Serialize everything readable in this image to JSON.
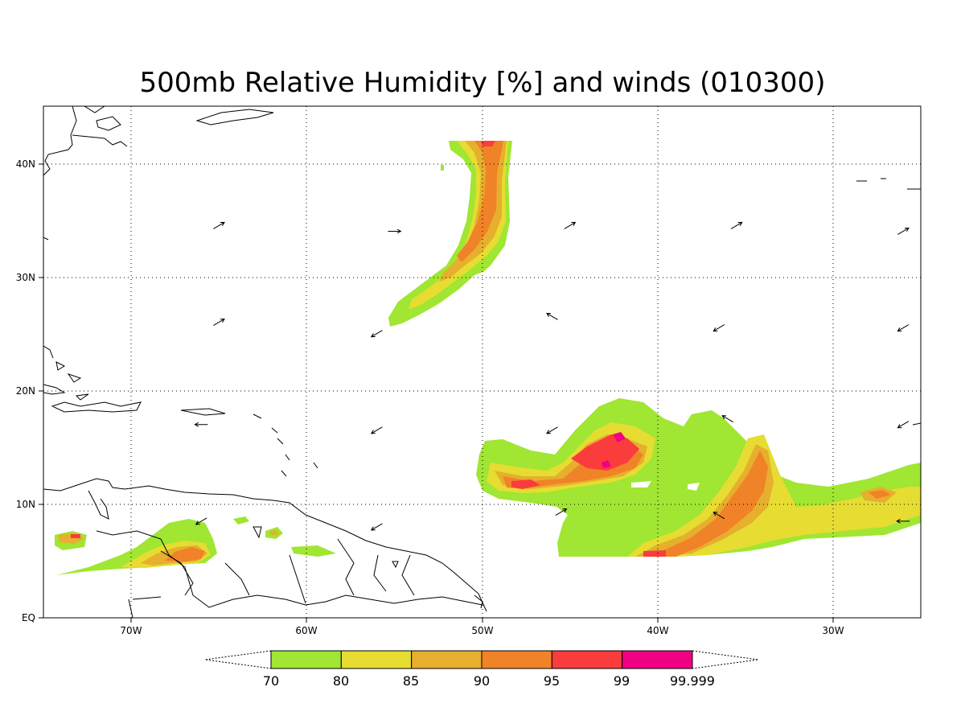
{
  "title": "500mb Relative Humidity [%] and winds (010300)",
  "axes": {
    "lon_ticks": [
      "70W",
      "60W",
      "50W",
      "40W",
      "30W"
    ],
    "lat_ticks": [
      "EQ",
      "10N",
      "20N",
      "30N",
      "40N"
    ]
  },
  "colorbar": {
    "levels": [
      "70",
      "80",
      "85",
      "90",
      "95",
      "99",
      "99.999"
    ],
    "colors": [
      "#a0e632",
      "#e6dc32",
      "#e6af2d",
      "#f08228",
      "#fa3c3c",
      "#f00082"
    ]
  },
  "chart_data": {
    "type": "heatmap",
    "title": "500mb Relative Humidity [%] and winds (010300)",
    "xlim": [
      -75,
      -25
    ],
    "ylim": [
      0,
      45
    ],
    "x_ticks": [
      "70W",
      "60W",
      "50W",
      "40W",
      "30W"
    ],
    "y_ticks": [
      "EQ",
      "10N",
      "20N",
      "30N",
      "40N"
    ],
    "grid": true,
    "legend": "colorbar-bottom",
    "levels": [
      70,
      80,
      85,
      90,
      95,
      99,
      99.999
    ],
    "wind_vectors": [
      {
        "lon": -65,
        "lat": 34.5,
        "dir": "NE"
      },
      {
        "lon": -55,
        "lat": 34,
        "dir": "E"
      },
      {
        "lon": -45,
        "lat": 34.5,
        "dir": "NE"
      },
      {
        "lon": -35.5,
        "lat": 34.5,
        "dir": "NE"
      },
      {
        "lon": -26,
        "lat": 34,
        "dir": "NE"
      },
      {
        "lon": -65,
        "lat": 26,
        "dir": "NE"
      },
      {
        "lon": -56,
        "lat": 25,
        "dir": "SW"
      },
      {
        "lon": -46,
        "lat": 26.5,
        "dir": "NW"
      },
      {
        "lon": -36.5,
        "lat": 25.5,
        "dir": "SW"
      },
      {
        "lon": -26,
        "lat": 25.5,
        "dir": "SW"
      },
      {
        "lon": -66,
        "lat": 17,
        "dir": "W"
      },
      {
        "lon": -56,
        "lat": 16.5,
        "dir": "SW"
      },
      {
        "lon": -46,
        "lat": 16.5,
        "dir": "SW"
      },
      {
        "lon": -36,
        "lat": 17.5,
        "dir": "NW"
      },
      {
        "lon": -26,
        "lat": 17,
        "dir": "SW"
      },
      {
        "lon": -66,
        "lat": 8.5,
        "dir": "SW"
      },
      {
        "lon": -56,
        "lat": 8,
        "dir": "SW"
      },
      {
        "lon": -45.5,
        "lat": 9.3,
        "dir": "NE"
      },
      {
        "lon": -36.5,
        "lat": 9,
        "dir": "NW"
      },
      {
        "lon": -26,
        "lat": 8.5,
        "dir": "W"
      }
    ]
  }
}
